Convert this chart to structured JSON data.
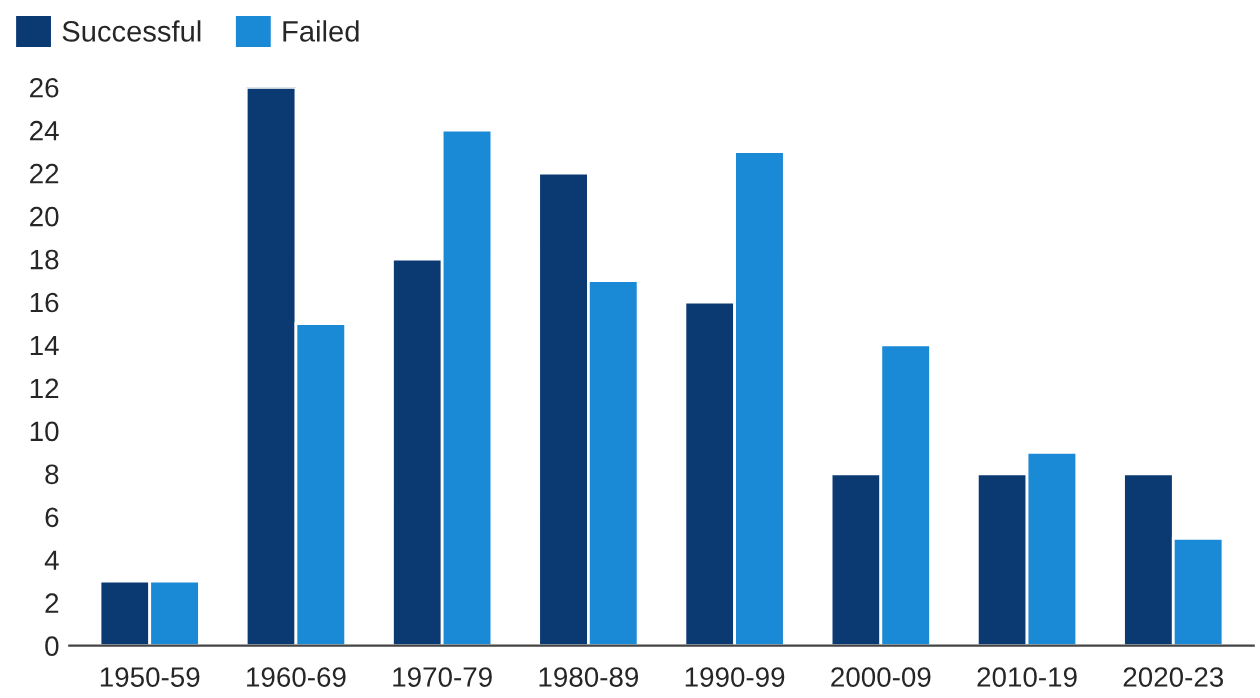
{
  "chart_data": {
    "type": "bar",
    "categories": [
      "1950-59",
      "1960-69",
      "1970-79",
      "1980-89",
      "1990-99",
      "2000-09",
      "2010-19",
      "2020-23"
    ],
    "series": [
      {
        "name": "Successful",
        "color": "#0b3a73",
        "values": [
          3,
          26,
          18,
          22,
          16,
          8,
          8,
          8
        ]
      },
      {
        "name": "Failed",
        "color": "#1a89d6",
        "values": [
          3,
          15,
          24,
          17,
          23,
          14,
          9,
          5
        ]
      }
    ],
    "ylim": [
      0,
      26
    ],
    "yticks": [
      0,
      2,
      4,
      6,
      8,
      10,
      12,
      14,
      16,
      18,
      20,
      22,
      24,
      26
    ],
    "grid": false,
    "legend": "top left"
  }
}
